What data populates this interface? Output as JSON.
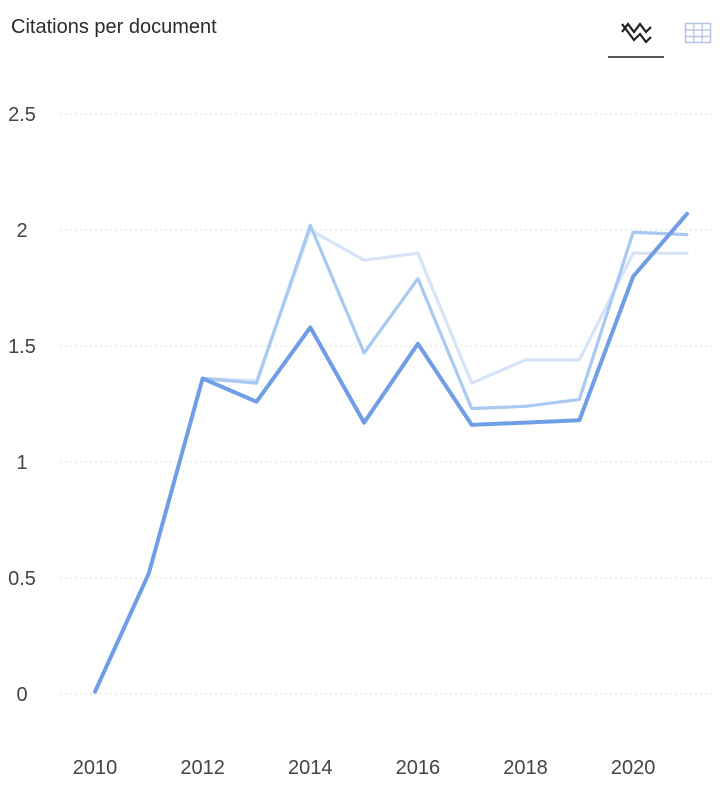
{
  "header": {
    "title": "Citations per document",
    "views": [
      {
        "name": "chart-view",
        "icon": "line-chart-icon",
        "active": true
      },
      {
        "name": "table-view",
        "icon": "table-grid-icon",
        "active": false
      }
    ]
  },
  "chart_data": {
    "type": "line",
    "title": "Citations per document",
    "xlabel": "",
    "ylabel": "",
    "x": [
      2010,
      2011,
      2012,
      2013,
      2014,
      2015,
      2016,
      2017,
      2018,
      2019,
      2020,
      2021
    ],
    "xticks": [
      "2010",
      "2012",
      "2014",
      "2016",
      "2018",
      "2020"
    ],
    "yticks": [
      "0",
      "0.5",
      "1",
      "1.5",
      "2",
      "2.5"
    ],
    "ylim": [
      0,
      2.5
    ],
    "grid": true,
    "legend": false,
    "series": [
      {
        "color": "#d6e4f8",
        "values": [
          null,
          null,
          1.36,
          1.35,
          2.0,
          1.87,
          1.9,
          1.34,
          1.44,
          1.44,
          1.9,
          1.9
        ]
      },
      {
        "color": "#a9c8f2",
        "values": [
          null,
          null,
          1.36,
          1.34,
          2.02,
          1.47,
          1.79,
          1.23,
          1.24,
          1.27,
          1.99,
          1.98
        ]
      },
      {
        "color": "#6f9ee6",
        "values": [
          0.01,
          0.52,
          1.36,
          1.26,
          1.58,
          1.17,
          1.51,
          1.16,
          1.17,
          1.18,
          1.8,
          2.07
        ]
      }
    ]
  }
}
